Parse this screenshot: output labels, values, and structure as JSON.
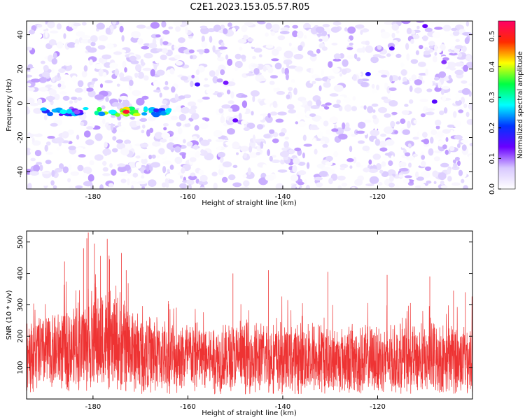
{
  "title": "C2E1.2023.153.05.57.R05",
  "chart_data": [
    {
      "type": "heatmap",
      "xlabel": "Height of straight line (km)",
      "ylabel": "Frequency (Hz)",
      "xlim": [
        -194,
        -100
      ],
      "ylim": [
        -50,
        48
      ],
      "xticks": [
        -180,
        -160,
        -140,
        -120
      ],
      "yticks": [
        -40,
        -20,
        0,
        20,
        40
      ],
      "colorbar": {
        "label": "Normalized spectral amplitude",
        "range": [
          0,
          0.55
        ],
        "ticks": [
          "0.0",
          "0.1",
          "0.2",
          "0.3",
          "0.4",
          "0.5"
        ],
        "colormap": [
          "#ffffff",
          "#d8c8ff",
          "#6a00ff",
          "#0033ff",
          "#00ffff",
          "#00ff44",
          "#ffff00",
          "#ff2a00",
          "#ff0066"
        ]
      },
      "signal_band": {
        "x_range": [
          -192,
          -164
        ],
        "frequency_hz": -5,
        "peak_x": -173,
        "peak_amplitude": 0.52
      },
      "isolated_peaks": [
        {
          "x": -158,
          "y": 11,
          "v": 0.16
        },
        {
          "x": -152,
          "y": 12,
          "v": 0.13
        },
        {
          "x": -150,
          "y": -10,
          "v": 0.14
        },
        {
          "x": -122,
          "y": 17,
          "v": 0.17
        },
        {
          "x": -117,
          "y": 32,
          "v": 0.15
        },
        {
          "x": -110,
          "y": 45,
          "v": 0.14
        },
        {
          "x": -108,
          "y": 1,
          "v": 0.15
        },
        {
          "x": -106,
          "y": 24,
          "v": 0.12
        }
      ]
    },
    {
      "type": "line",
      "xlabel": "Height of straight line (km)",
      "ylabel": "SNR (10 * v/v)",
      "xlim": [
        -194,
        -100
      ],
      "ylim": [
        0,
        535
      ],
      "xticks": [
        -180,
        -160,
        -140,
        -120
      ],
      "yticks": [
        100,
        200,
        300,
        400,
        500
      ],
      "color": "#ee3333",
      "envelope": [
        {
          "x": -194,
          "low": 20,
          "high": 300,
          "mean": 150
        },
        {
          "x": -185,
          "low": 25,
          "high": 380,
          "mean": 160
        },
        {
          "x": -180,
          "low": 20,
          "high": 500,
          "mean": 165
        },
        {
          "x": -175,
          "low": 25,
          "high": 440,
          "mean": 160
        },
        {
          "x": -170,
          "low": 15,
          "high": 360,
          "mean": 140
        },
        {
          "x": -160,
          "low": 15,
          "high": 330,
          "mean": 130
        },
        {
          "x": -150,
          "low": 15,
          "high": 320,
          "mean": 125
        },
        {
          "x": -140,
          "low": 15,
          "high": 330,
          "mean": 125
        },
        {
          "x": -130,
          "low": 15,
          "high": 320,
          "mean": 120
        },
        {
          "x": -120,
          "low": 15,
          "high": 310,
          "mean": 120
        },
        {
          "x": -110,
          "low": 15,
          "high": 320,
          "mean": 120
        },
        {
          "x": -100,
          "low": 15,
          "high": 330,
          "mean": 125
        }
      ],
      "spikes": [
        {
          "x": -182,
          "y": 480
        },
        {
          "x": -181.3,
          "y": 512
        },
        {
          "x": -181,
          "y": 530
        },
        {
          "x": -179.7,
          "y": 495
        },
        {
          "x": -177,
          "y": 510
        },
        {
          "x": -174,
          "y": 465
        },
        {
          "x": -186,
          "y": 438
        },
        {
          "x": -173,
          "y": 410
        },
        {
          "x": -176.5,
          "y": 445
        },
        {
          "x": -150.5,
          "y": 400
        },
        {
          "x": -143,
          "y": 410
        },
        {
          "x": -130.5,
          "y": 405
        },
        {
          "x": -118,
          "y": 395
        },
        {
          "x": -109,
          "y": 390
        },
        {
          "x": -104,
          "y": 345
        },
        {
          "x": -101.5,
          "y": 340
        }
      ]
    }
  ]
}
